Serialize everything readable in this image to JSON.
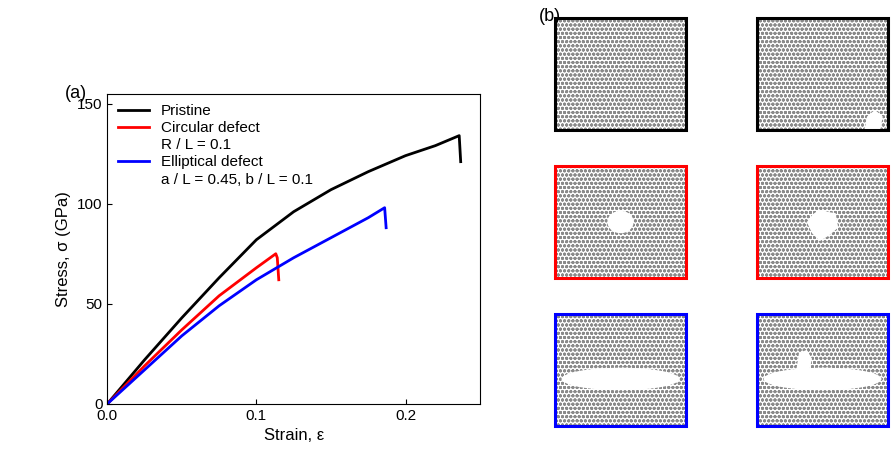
{
  "chart_data": {
    "type": "line",
    "xlabel": "Strain, ε",
    "ylabel": "Stress, σ (GPa)",
    "panel_labels": [
      "(a)",
      "(b)"
    ],
    "xlim": [
      0,
      0.25
    ],
    "xticks": [
      0.0,
      0.1,
      0.2
    ],
    "ylim": [
      0,
      155
    ],
    "yticks": [
      0,
      50,
      100,
      150
    ],
    "legend": "upper left",
    "series": [
      {
        "name": "Pristine",
        "color": "#000000",
        "x": [
          0,
          0.025,
          0.05,
          0.075,
          0.1,
          0.125,
          0.15,
          0.175,
          0.2,
          0.22,
          0.236,
          0.237
        ],
        "values": [
          0,
          22,
          43,
          63,
          82,
          96,
          107,
          116,
          124,
          129,
          134,
          121
        ]
      },
      {
        "name": "Circular defect",
        "annotation": "R / L = 0.1",
        "color": "#ff0000",
        "x": [
          0,
          0.025,
          0.05,
          0.075,
          0.1,
          0.113,
          0.114,
          0.115
        ],
        "values": [
          0,
          19,
          37,
          54,
          68,
          75,
          73,
          62
        ]
      },
      {
        "name": "Elliptical defect",
        "annotation": "a / L = 0.45, b / L = 0.1",
        "color": "#0000ff",
        "x": [
          0,
          0.025,
          0.05,
          0.075,
          0.1,
          0.125,
          0.15,
          0.175,
          0.186,
          0.187
        ],
        "values": [
          0,
          17,
          34,
          49,
          62,
          73,
          83,
          93,
          98,
          88
        ]
      }
    ]
  }
}
